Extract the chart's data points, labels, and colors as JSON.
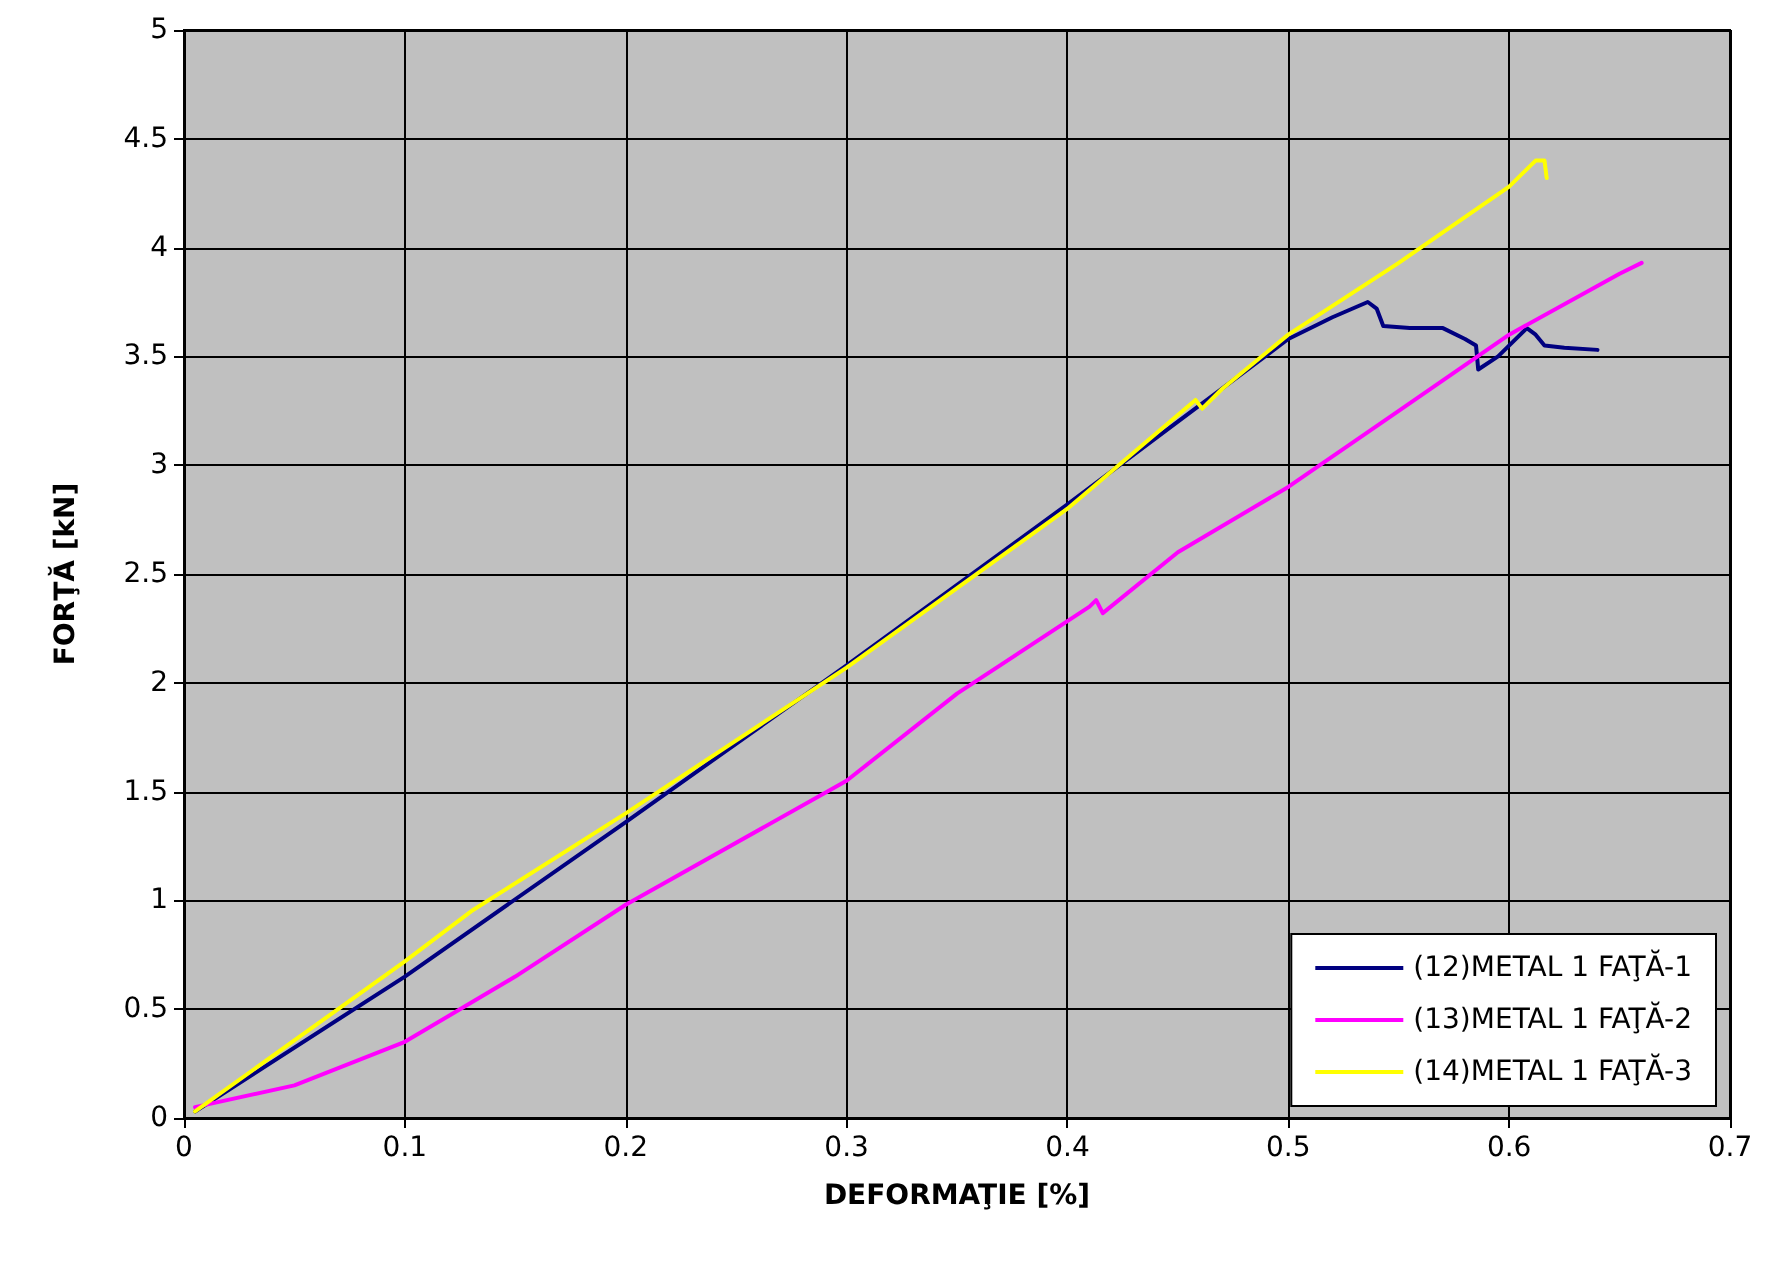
{
  "chart_data": {
    "type": "line",
    "xlabel": "DEFORMAŢIE [%]",
    "ylabel": "FORŢĂ [kN]",
    "xlim": [
      0,
      0.7
    ],
    "xticks": [
      0,
      0.1,
      0.2,
      0.3,
      0.4,
      0.5,
      0.6,
      0.7
    ],
    "ylim": [
      0,
      5
    ],
    "yticks": [
      0,
      0.5,
      1,
      1.5,
      2,
      2.5,
      3,
      3.5,
      4,
      4.5,
      5
    ],
    "grid": true,
    "legend": "bottom right",
    "marker": "none",
    "line_style": "solid",
    "series": [
      {
        "name": "(12)METAL 1 FAŢĂ-1",
        "color": "#000080",
        "x": [
          0.005,
          0.1,
          0.2,
          0.3,
          0.4,
          0.45,
          0.5,
          0.52,
          0.536,
          0.54,
          0.543,
          0.555,
          0.57,
          0.58,
          0.585,
          0.586,
          0.595,
          0.608,
          0.612,
          0.616,
          0.625,
          0.64
        ],
        "values": [
          0.03,
          0.65,
          1.36,
          2.08,
          2.82,
          3.2,
          3.58,
          3.68,
          3.75,
          3.72,
          3.64,
          3.63,
          3.63,
          3.58,
          3.55,
          3.44,
          3.5,
          3.63,
          3.6,
          3.55,
          3.54,
          3.53
        ]
      },
      {
        "name": "(13)METAL 1 FAŢĂ-2",
        "color": "#ff00ff",
        "x": [
          0.005,
          0.05,
          0.1,
          0.15,
          0.2,
          0.3,
          0.35,
          0.41,
          0.413,
          0.416,
          0.45,
          0.5,
          0.55,
          0.6,
          0.65,
          0.66
        ],
        "values": [
          0.05,
          0.15,
          0.35,
          0.65,
          0.98,
          1.55,
          1.95,
          2.35,
          2.38,
          2.32,
          2.6,
          2.9,
          3.25,
          3.6,
          3.88,
          3.93
        ]
      },
      {
        "name": "(14)METAL 1 FAŢĂ-3",
        "color": "#ffff00",
        "x": [
          0.005,
          0.1,
          0.13,
          0.2,
          0.3,
          0.4,
          0.458,
          0.461,
          0.47,
          0.5,
          0.55,
          0.6,
          0.612,
          0.616,
          0.617
        ],
        "values": [
          0.03,
          0.72,
          0.95,
          1.4,
          2.07,
          2.8,
          3.3,
          3.26,
          3.35,
          3.6,
          3.93,
          4.28,
          4.4,
          4.4,
          4.32
        ]
      }
    ]
  }
}
